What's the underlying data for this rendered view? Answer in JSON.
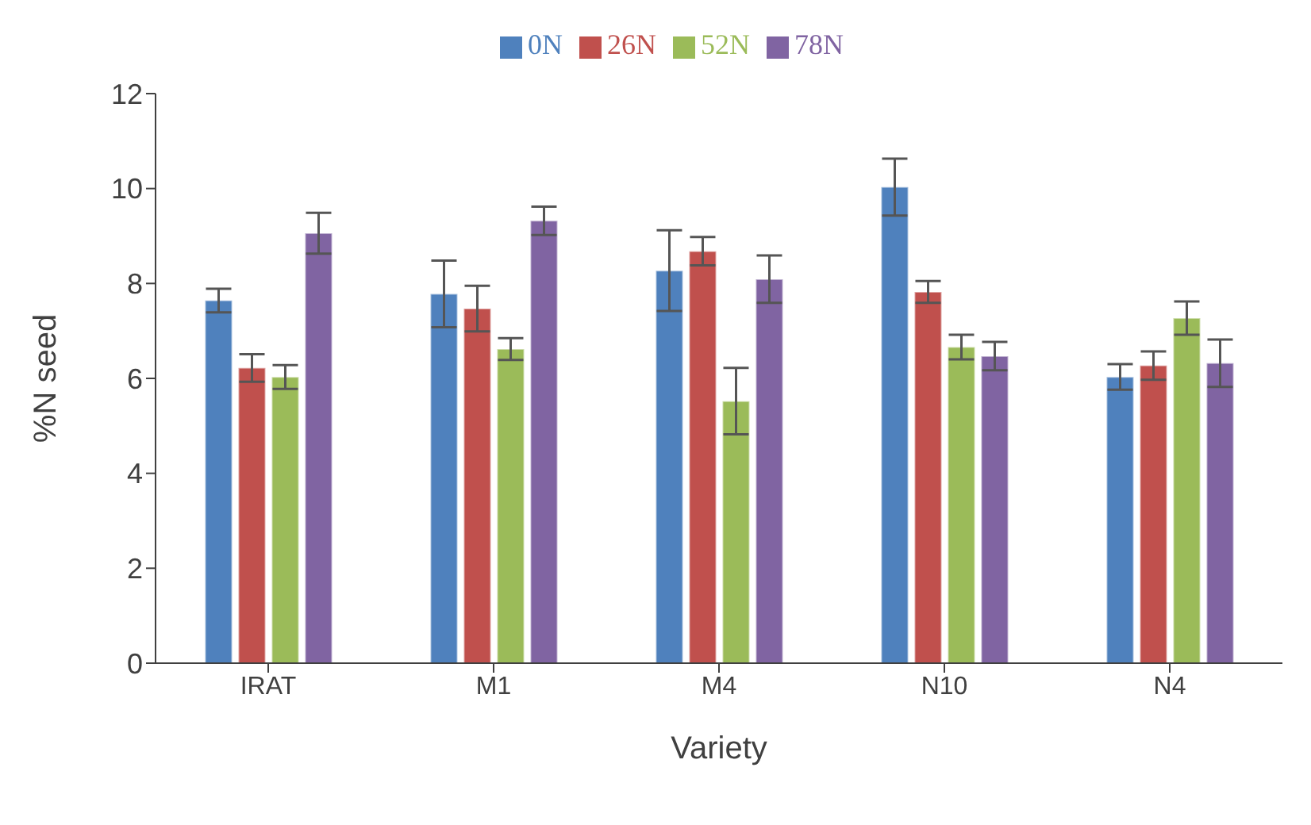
{
  "chart_data": {
    "type": "bar",
    "xlabel": "Variety",
    "ylabel": "%N seed",
    "categories": [
      "IRAT",
      "M1",
      "M4",
      "N10",
      "N4"
    ],
    "series": [
      {
        "name": "0N",
        "color": "#4f81bd",
        "values": [
          7.64,
          7.78,
          8.27,
          10.03,
          6.03
        ],
        "errors": [
          0.25,
          0.7,
          0.85,
          0.6,
          0.27
        ]
      },
      {
        "name": "26N",
        "color": "#c0504d",
        "values": [
          6.22,
          7.47,
          8.68,
          7.82,
          6.27
        ],
        "errors": [
          0.29,
          0.48,
          0.3,
          0.23,
          0.3
        ]
      },
      {
        "name": "52N",
        "color": "#9bbb59",
        "values": [
          6.03,
          6.62,
          5.52,
          6.66,
          7.27
        ],
        "errors": [
          0.25,
          0.23,
          0.7,
          0.26,
          0.35
        ]
      },
      {
        "name": "78N",
        "color": "#8064a2",
        "values": [
          9.06,
          9.32,
          8.09,
          6.47,
          6.32
        ],
        "errors": [
          0.43,
          0.3,
          0.5,
          0.3,
          0.5
        ]
      }
    ],
    "ylim": [
      0,
      12
    ],
    "yticks": [
      0,
      2,
      4,
      6,
      8,
      10,
      12
    ],
    "grid": false,
    "legend": "top"
  }
}
